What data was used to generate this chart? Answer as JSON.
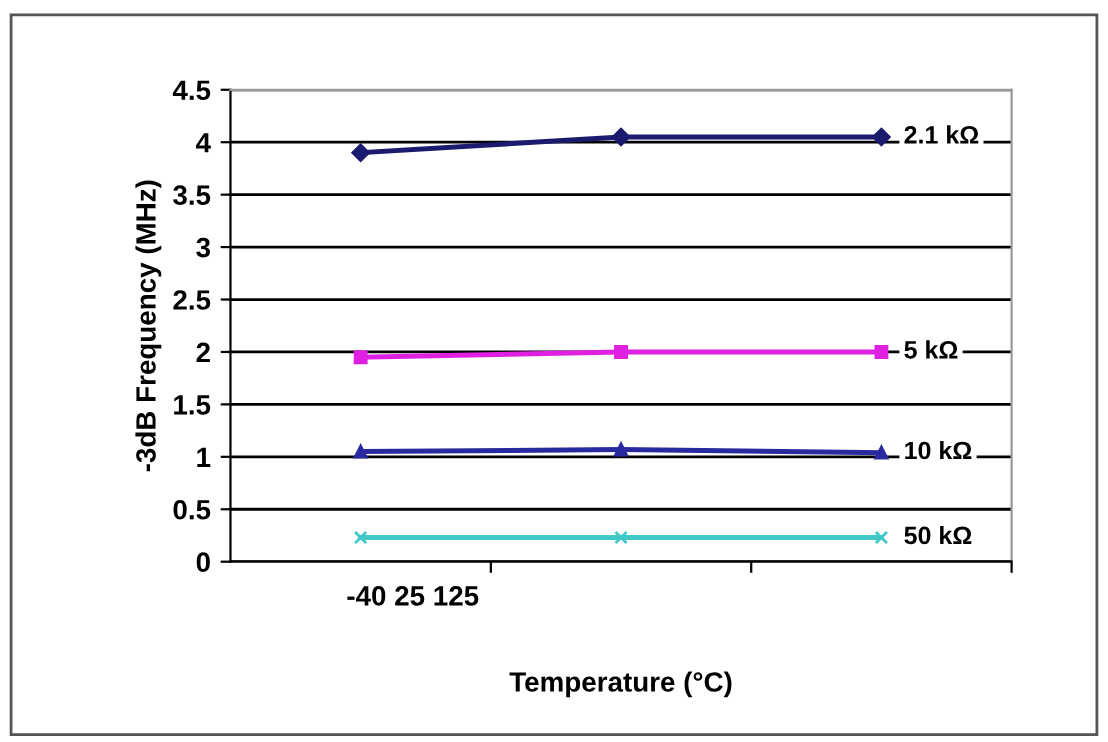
{
  "chart_data": {
    "type": "line",
    "xlabel": "Temperature (°C)",
    "ylabel": "-3dB Frequency (MHz)",
    "categories": [
      "-40 25 125",
      null,
      null
    ],
    "series": [
      {
        "name": "2.1 kΩ",
        "color": "#1a1a6e",
        "marker": "diamond",
        "values": [
          3.9,
          4.05,
          4.05
        ]
      },
      {
        "name": "5 kΩ",
        "color": "#e020e0",
        "marker": "square",
        "values": [
          1.95,
          2.0,
          2.0
        ]
      },
      {
        "name": "10 kΩ",
        "color": "#2a2aa0",
        "marker": "triangle",
        "values": [
          1.05,
          1.07,
          1.04
        ]
      },
      {
        "name": "50 kΩ",
        "color": "#40c8c8",
        "marker": "cross",
        "values": [
          0.23,
          0.23,
          0.23
        ]
      }
    ],
    "ylim": [
      0,
      4.5
    ],
    "yticks": [
      0,
      0.5,
      1,
      1.5,
      2,
      2.5,
      3,
      3.5,
      4,
      4.5
    ],
    "grid": "y",
    "legend": false
  }
}
